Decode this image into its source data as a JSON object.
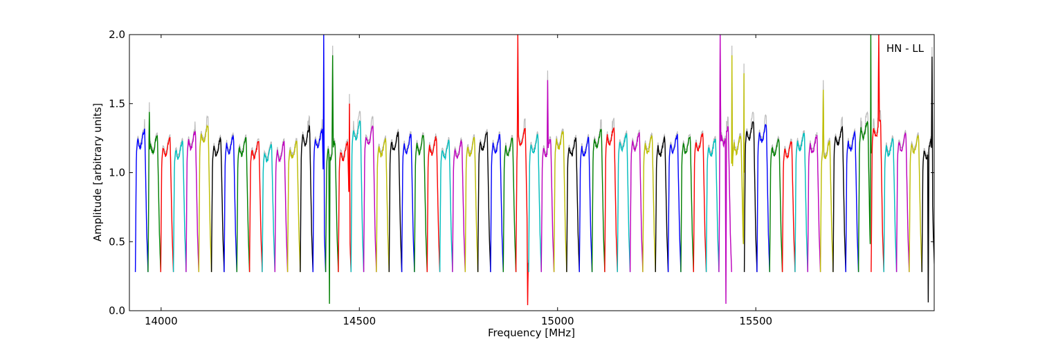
{
  "chart_data": {
    "type": "line",
    "annotation": "HN - LL",
    "xlabel": "Frequency [MHz]",
    "ylabel": "Amplitude [arbitrary units]",
    "xlim": [
      13920,
      15950
    ],
    "ylim": [
      0.0,
      2.0
    ],
    "xticks": [
      14000,
      14500,
      15000,
      15500
    ],
    "yticks": [
      0.0,
      0.5,
      1.0,
      1.5,
      2.0
    ],
    "xtick_labels": [
      "14000",
      "14500",
      "15000",
      "15500"
    ],
    "ytick_labels": [
      "0.0",
      "0.5",
      "1.0",
      "1.5",
      "2.0"
    ],
    "grid": false,
    "legend": "none",
    "shadow_color": "#bbbbbb",
    "color_cycle": [
      "#0000ff",
      "#008000",
      "#ff0000",
      "#00bfbf",
      "#bf00bf",
      "#bfbf00",
      "#000000"
    ],
    "channel_width_mhz": 32,
    "channel_start_mhz": 13935,
    "num_channels": 63,
    "band_levels": [
      1.26,
      1.22,
      1.2,
      1.18,
      1.25,
      1.3,
      1.2,
      1.22,
      1.2,
      1.18,
      1.16,
      1.17,
      1.18,
      1.28,
      1.26,
      1.18,
      1.17,
      1.32,
      1.28,
      1.2,
      1.24,
      1.22,
      1.22,
      1.21,
      1.18,
      1.18,
      1.2,
      1.24,
      1.22,
      1.2,
      1.27,
      1.22,
      1.2,
      1.25,
      1.2,
      1.2,
      1.26,
      1.28,
      1.24,
      1.24,
      1.22,
      1.2,
      1.22,
      1.22,
      1.24,
      1.2,
      1.28,
      1.22,
      1.32,
      1.3,
      1.2,
      1.18,
      1.24,
      1.22,
      1.18,
      1.28,
      1.24,
      1.33,
      1.34,
      1.2,
      1.24,
      1.22,
      1.18
    ],
    "features": [
      {
        "x": 13970,
        "y": 1.44
      },
      {
        "x": 14410,
        "y": 2.0
      },
      {
        "x": 14425,
        "y": 0.05
      },
      {
        "x": 14433,
        "y": 1.85
      },
      {
        "x": 14475,
        "y": 1.5
      },
      {
        "x": 14900,
        "y": 2.0
      },
      {
        "x": 14925,
        "y": 0.04
      },
      {
        "x": 14975,
        "y": 1.67
      },
      {
        "x": 15410,
        "y": 2.0
      },
      {
        "x": 15425,
        "y": 0.05
      },
      {
        "x": 15440,
        "y": 1.85
      },
      {
        "x": 15470,
        "y": 1.72
      },
      {
        "x": 15670,
        "y": 1.6
      },
      {
        "x": 15790,
        "y": 2.0
      },
      {
        "x": 15810,
        "y": 2.0
      },
      {
        "x": 15935,
        "y": 0.06
      },
      {
        "x": 15945,
        "y": 1.84
      }
    ]
  }
}
